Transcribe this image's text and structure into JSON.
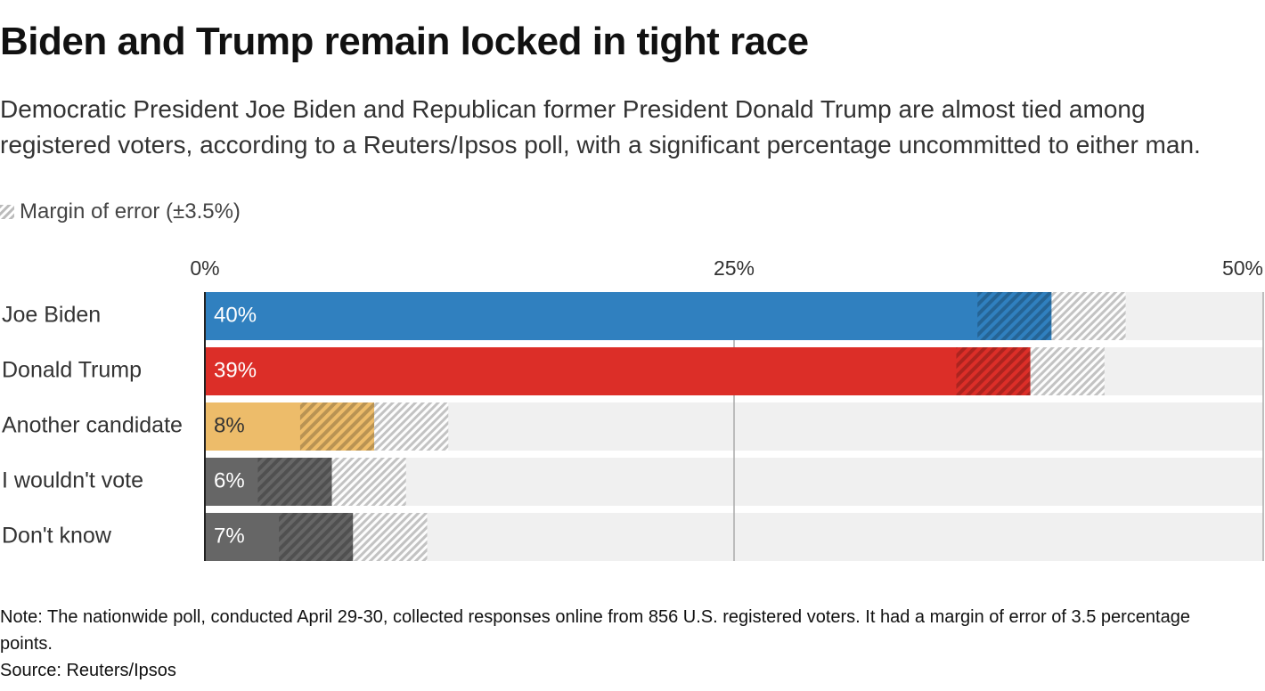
{
  "chart_data": {
    "type": "bar",
    "title": "Biden and Trump remain locked in tight race",
    "subtitle": "Democratic President Joe Biden and Republican former President Donald Trump are almost tied among registered voters, according to a Reuters/Ipsos poll, with a significant percentage uncommitted to either man.",
    "legend": "Margin of error (±3.5%)",
    "error": 3.5,
    "categories": [
      "Joe Biden",
      "Donald Trump",
      "Another candidate",
      "I wouldn't vote",
      "Don't know"
    ],
    "values": [
      40,
      39,
      8,
      6,
      7
    ],
    "value_labels": [
      "40%",
      "39%",
      "8%",
      "6%",
      "7%"
    ],
    "colors": [
      "#3080bf",
      "#dc2e28",
      "#edbc6a",
      "#666666",
      "#666666"
    ],
    "xlim": [
      0,
      50
    ],
    "xticks": [
      {
        "value": 0,
        "label": "0%"
      },
      {
        "value": 25,
        "label": "25%"
      },
      {
        "value": 50,
        "label": "50%"
      }
    ],
    "grid": true,
    "note": "Note: The nationwide poll, conducted April 29-30, collected responses online from 856 U.S. registered voters. It had a margin of error of 3.5 percentage points.",
    "source": "Source: Reuters/Ipsos"
  }
}
